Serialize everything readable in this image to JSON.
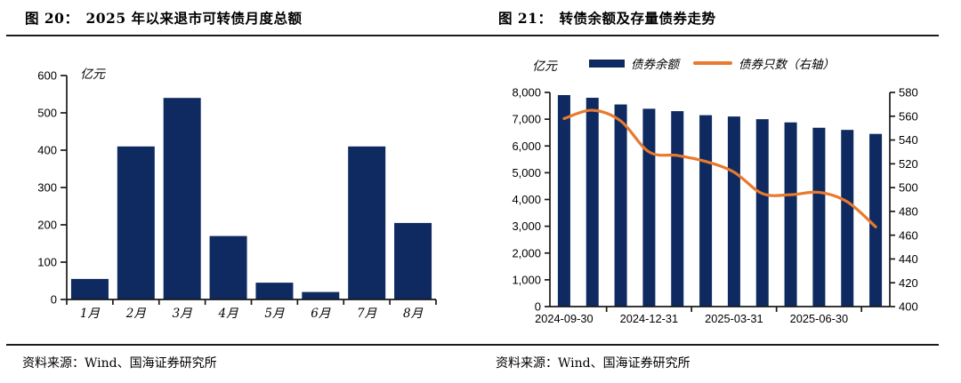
{
  "figures": [
    {
      "title_prefix": "图 20：",
      "title": "2025 年以来退市可转债月度总额",
      "source_label": "资料来源：",
      "source_text": "Wind、国海证券研究所"
    },
    {
      "title_prefix": "图 21：",
      "title": "转债余额及存量债券走势",
      "source_label": "资料来源：",
      "source_text": "Wind、国海证券研究所"
    }
  ],
  "colors": {
    "bar_navy": "#0e2a60",
    "line_orange": "#e8792d",
    "axis": "#1a1a1a"
  },
  "chart_data": [
    {
      "type": "bar",
      "title": "2025 年以来退市可转债月度总额",
      "unit_label": "亿元",
      "categories": [
        "1月",
        "2月",
        "3月",
        "4月",
        "5月",
        "6月",
        "7月",
        "8月"
      ],
      "values": [
        55,
        410,
        540,
        170,
        45,
        20,
        410,
        205
      ],
      "ylim": [
        0,
        600
      ],
      "yticks": [
        0,
        100,
        200,
        300,
        400,
        500,
        600
      ],
      "grid": false,
      "legend": "none",
      "bar_color": "#0e2a60"
    },
    {
      "type": "bar+line",
      "title": "转债余额及存量债券走势",
      "unit_label": "亿元",
      "n_points": 12,
      "xtick_labels": [
        {
          "label": "2024-09-30",
          "index": 0
        },
        {
          "label": "2024-12-31",
          "index": 3
        },
        {
          "label": "2025-03-31",
          "index": 6
        },
        {
          "label": "2025-06-30",
          "index": 9
        }
      ],
      "series": [
        {
          "name": "债券余额",
          "type": "bar",
          "axis": "left",
          "color": "#0e2a60",
          "values": [
            7900,
            7800,
            7550,
            7390,
            7300,
            7150,
            7100,
            7000,
            6880,
            6680,
            6600,
            6450
          ]
        },
        {
          "name": "债券只数（右轴）",
          "type": "line",
          "axis": "right",
          "color": "#e8792d",
          "values": [
            558,
            565,
            556,
            530,
            527,
            522,
            513,
            495,
            494,
            496,
            488,
            467
          ]
        }
      ],
      "left_ylim": [
        0,
        8000
      ],
      "left_yticks": [
        0,
        1000,
        2000,
        3000,
        4000,
        5000,
        6000,
        7000,
        8000
      ],
      "right_ylim": [
        400,
        580
      ],
      "right_yticks": [
        400,
        420,
        440,
        460,
        480,
        500,
        520,
        540,
        560,
        580
      ],
      "grid": false,
      "legend_position": "top"
    }
  ]
}
